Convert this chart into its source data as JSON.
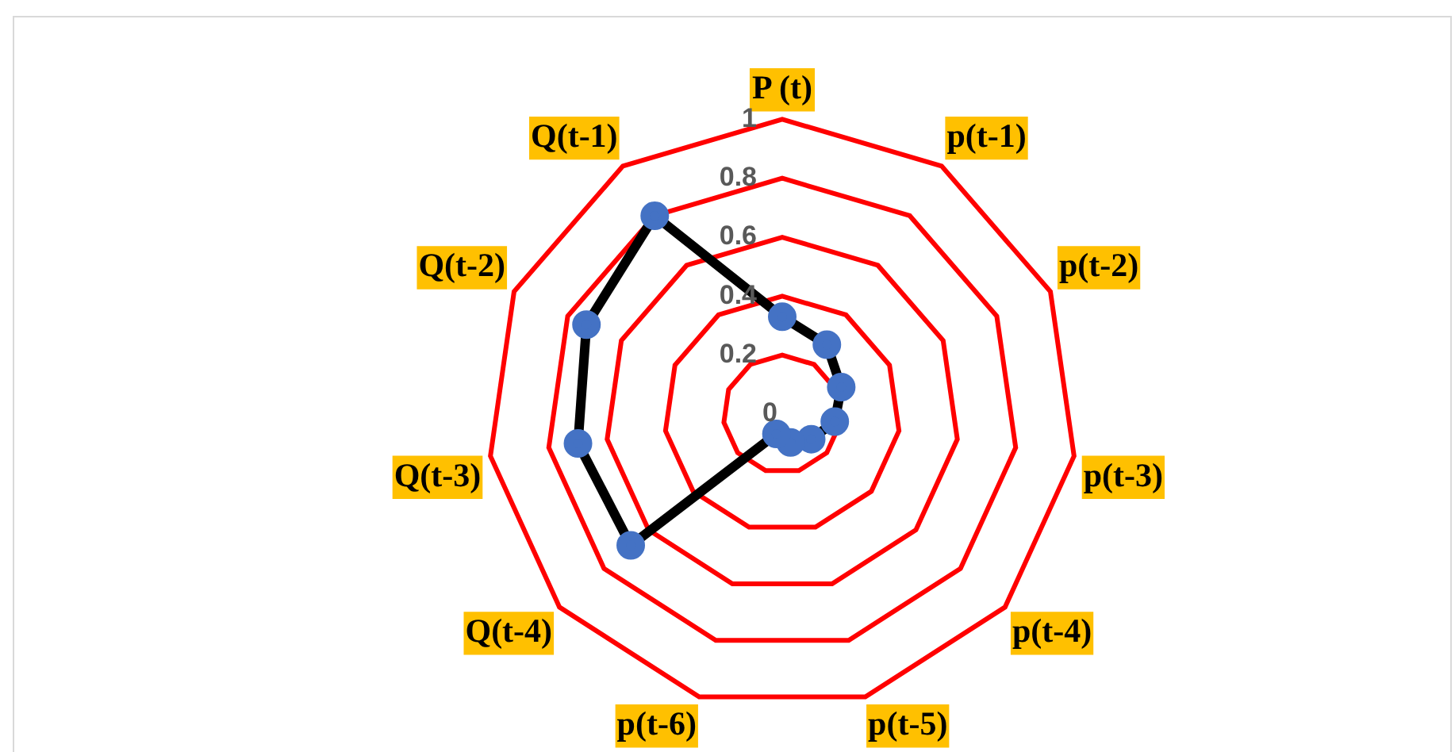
{
  "chart_data": {
    "type": "radar",
    "categories": [
      "P (t)",
      "p(t-1)",
      "p(t-2)",
      "p(t-3)",
      "p(t-4)",
      "p(t-5)",
      "p(t-6)",
      "Q(t-4)",
      "Q(t-3)",
      "Q(t-2)",
      "Q(t-1)"
    ],
    "series": [
      {
        "color": "#000000",
        "values": [
          0.33,
          0.28,
          0.22,
          0.18,
          0.13,
          0.1,
          0.07,
          0.68,
          0.7,
          0.73,
          0.8
        ]
      }
    ],
    "ylim": [
      0,
      1
    ],
    "yticks": [
      0,
      0.2,
      0.4,
      0.6,
      0.8,
      1
    ],
    "grid": true,
    "marker": "circle",
    "legend": false
  }
}
